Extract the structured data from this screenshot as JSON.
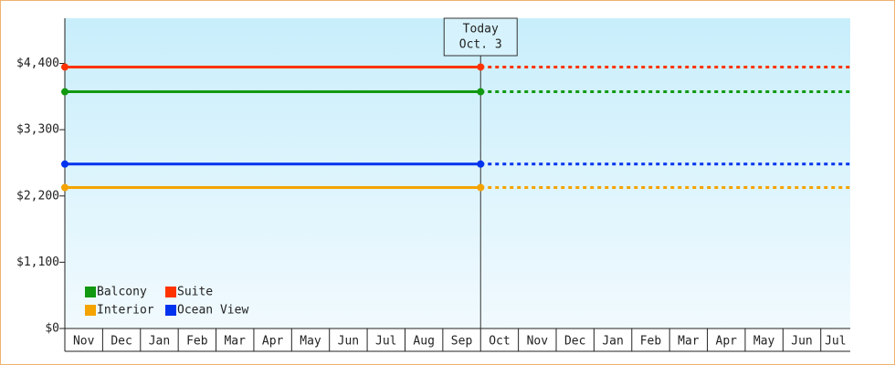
{
  "chart_data": {
    "type": "line",
    "categories": [
      "Nov",
      "Dec",
      "Jan",
      "Feb",
      "Mar",
      "Apr",
      "May",
      "Jun",
      "Jul",
      "Aug",
      "Sep",
      "Oct",
      "Nov",
      "Dec",
      "Jan",
      "Feb",
      "Mar",
      "Apr",
      "May",
      "Jun",
      "Jul"
    ],
    "series": [
      {
        "name": "Balcony",
        "color": "#119911",
        "value": 3930
      },
      {
        "name": "Suite",
        "color": "#ff3300",
        "value": 4340
      },
      {
        "name": "Interior",
        "color": "#f5a300",
        "value": 2340
      },
      {
        "name": "Ocean View",
        "color": "#0033ee",
        "value": 2730
      }
    ],
    "ylim": [
      0,
      5150
    ],
    "yticks": [
      {
        "value": 0,
        "label": "$0"
      },
      {
        "value": 1100,
        "label": "$1,100"
      },
      {
        "value": 2200,
        "label": "$2,200"
      },
      {
        "value": 3300,
        "label": "$3,300"
      },
      {
        "value": 4400,
        "label": "$4,400"
      }
    ],
    "annotation": {
      "lines": [
        "Today",
        "Oct. 3"
      ],
      "x": "Oct"
    }
  }
}
